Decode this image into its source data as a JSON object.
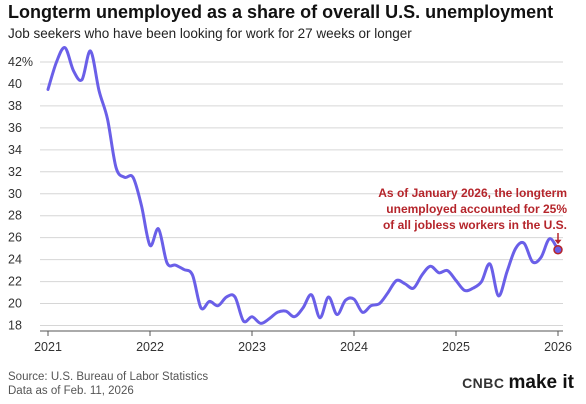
{
  "header": {
    "title": "Longterm unemployed as a share of overall U.S. unemployment",
    "subtitle": "Job seekers who have been looking for work for 27 weeks or longer"
  },
  "footer": {
    "source": "Source: U.S. Bureau of Labor Statistics",
    "date": "Data as of Feb. 11, 2026"
  },
  "brand": {
    "cnbc": "CNBC",
    "make_it": "make it"
  },
  "colors": {
    "line": "#6a5fe8",
    "annotation": "#b5252b",
    "marker_fill": "#6a5fe8",
    "grid": "#d6d6d6"
  },
  "chart_data": {
    "type": "line",
    "title": "Longterm unemployed as a share of overall U.S. unemployment",
    "subtitle": "Job seekers who have been looking for work for 27 weeks or longer",
    "xlabel": "",
    "ylabel": "",
    "x_ticks": [
      "2021",
      "2022",
      "2023",
      "2024",
      "2025",
      "2026"
    ],
    "y_ticks": [
      "18",
      "20",
      "22",
      "24",
      "26",
      "28",
      "30",
      "32",
      "34",
      "36",
      "38",
      "40",
      "42%"
    ],
    "y_tick_values": [
      18,
      20,
      22,
      24,
      26,
      28,
      30,
      32,
      34,
      36,
      38,
      40,
      42
    ],
    "xlim": [
      "2021-01",
      "2026-01"
    ],
    "ylim": [
      17.5,
      42
    ],
    "grid": "horizontal",
    "series": [
      {
        "x": [
          "2021-01",
          "2021-02",
          "2021-03",
          "2021-04",
          "2021-05",
          "2021-06",
          "2021-07",
          "2021-08",
          "2021-09",
          "2021-10",
          "2021-11",
          "2021-12",
          "2022-01",
          "2022-02",
          "2022-03",
          "2022-04",
          "2022-05",
          "2022-06",
          "2022-07",
          "2022-08",
          "2022-09",
          "2022-10",
          "2022-11",
          "2022-12",
          "2023-01",
          "2023-02",
          "2023-03",
          "2023-04",
          "2023-05",
          "2023-06",
          "2023-07",
          "2023-08",
          "2023-09",
          "2023-10",
          "2023-11",
          "2023-12",
          "2024-01",
          "2024-02",
          "2024-03",
          "2024-04",
          "2024-05",
          "2024-06",
          "2024-07",
          "2024-08",
          "2024-09",
          "2024-10",
          "2024-11",
          "2024-12",
          "2025-01",
          "2025-02",
          "2025-03",
          "2025-04",
          "2025-05",
          "2025-06",
          "2025-07",
          "2025-08",
          "2025-09",
          "2025-10",
          "2025-11",
          "2025-12",
          "2026-01"
        ],
        "values": [
          39.5,
          42.0,
          43.3,
          41.2,
          40.4,
          43.0,
          39.4,
          36.8,
          32.4,
          31.5,
          31.5,
          28.9,
          25.3,
          26.8,
          23.7,
          23.5,
          23.1,
          22.6,
          19.6,
          20.2,
          19.8,
          20.6,
          20.6,
          18.4,
          18.8,
          18.2,
          18.6,
          19.2,
          19.3,
          18.8,
          19.6,
          20.8,
          18.7,
          20.6,
          19.0,
          20.3,
          20.4,
          19.2,
          19.8,
          20.0,
          21.0,
          22.1,
          21.8,
          21.4,
          22.6,
          23.4,
          22.8,
          23.0,
          22.1,
          21.2,
          21.4,
          22.0,
          23.6,
          20.7,
          22.9,
          25.0,
          25.5,
          23.8,
          24.2,
          25.9,
          24.9
        ]
      }
    ],
    "annotation": {
      "lines": [
        "As of January 2026, the longterm",
        "unemployed accounted for 25%",
        "of all jobless workers in the U.S."
      ],
      "x": "2026-01",
      "y": 24.9
    }
  }
}
